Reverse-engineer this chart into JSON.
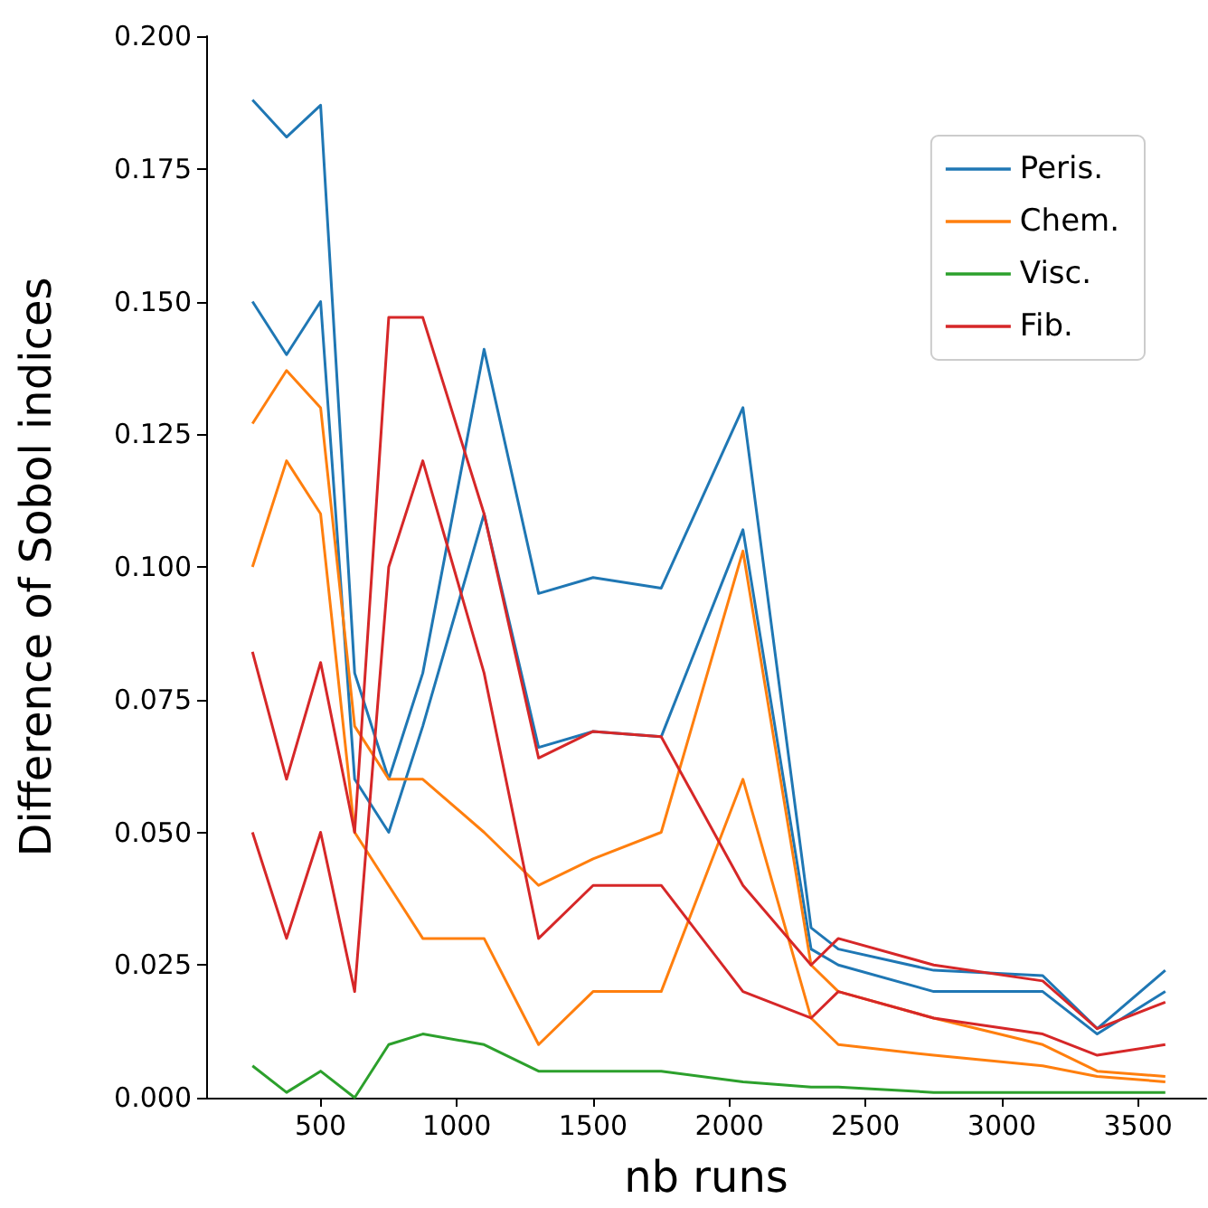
{
  "chart_data": {
    "type": "line",
    "xlabel": "nb runs",
    "ylabel": "Difference of Sobol indices",
    "x": [
      250,
      375,
      500,
      625,
      750,
      875,
      1100,
      1300,
      1500,
      1750,
      2050,
      2300,
      2400,
      2750,
      3150,
      3350,
      3600
    ],
    "series": [
      {
        "name": "Peris.",
        "color": "#1f77b4",
        "values": [
          0.188,
          0.181,
          0.187,
          0.08,
          0.06,
          0.08,
          0.141,
          0.095,
          0.098,
          0.096,
          0.13,
          0.032,
          0.028,
          0.024,
          0.023,
          0.013,
          0.024
        ]
      },
      {
        "color": "#1f77b4",
        "values": [
          0.15,
          0.14,
          0.15,
          0.06,
          0.05,
          0.07,
          0.11,
          0.066,
          0.069,
          0.068,
          0.107,
          0.028,
          0.025,
          0.02,
          0.02,
          0.012,
          0.02
        ]
      },
      {
        "name": "Chem.",
        "color": "#ff7f0e",
        "values": [
          0.127,
          0.137,
          0.13,
          0.07,
          0.06,
          0.06,
          0.05,
          0.04,
          0.045,
          0.05,
          0.103,
          0.025,
          0.02,
          0.015,
          0.01,
          0.005,
          0.004
        ]
      },
      {
        "color": "#ff7f0e",
        "values": [
          0.1,
          0.12,
          0.11,
          0.05,
          0.04,
          0.03,
          0.03,
          0.01,
          0.02,
          0.02,
          0.06,
          0.015,
          0.01,
          0.008,
          0.006,
          0.004,
          0.003
        ]
      },
      {
        "name": "Visc.",
        "color": "#2ca02c",
        "values": [
          0.006,
          0.001,
          0.005,
          0,
          0.01,
          0.012,
          0.01,
          0.005,
          0.005,
          0.005,
          0.003,
          0.002,
          0.002,
          0.001,
          0.001,
          0.001,
          0.001
        ]
      },
      {
        "name": "Fib.",
        "color": "#d62728",
        "values": [
          0.084,
          0.06,
          0.082,
          0.05,
          0.147,
          0.147,
          0.11,
          0.064,
          0.069,
          0.068,
          0.04,
          0.025,
          0.03,
          0.025,
          0.022,
          0.013,
          0.018
        ]
      },
      {
        "color": "#d62728",
        "values": [
          0.05,
          0.03,
          0.05,
          0.02,
          0.1,
          0.12,
          0.08,
          0.03,
          0.04,
          0.04,
          0.02,
          0.015,
          0.02,
          0.015,
          0.012,
          0.008,
          0.01
        ]
      }
    ],
    "xlim": [
      80,
      3750
    ],
    "xticks": [
      500,
      1000,
      1500,
      2000,
      2500,
      3000,
      3500
    ],
    "ylim": [
      0,
      0.2
    ],
    "yticks": [
      {
        "value": 0,
        "label": "0.000"
      },
      {
        "value": 0.025,
        "label": "0.025"
      },
      {
        "value": 0.05,
        "label": "0.050"
      },
      {
        "value": 0.075,
        "label": "0.075"
      },
      {
        "value": 0.1,
        "label": "0.100"
      },
      {
        "value": 0.125,
        "label": "0.125"
      },
      {
        "value": 0.15,
        "label": "0.150"
      },
      {
        "value": 0.175,
        "label": "0.175"
      },
      {
        "value": 0.2,
        "label": "0.200"
      }
    ],
    "legend": "top right",
    "grid": false,
    "marker": "none",
    "line_style": "solid"
  }
}
